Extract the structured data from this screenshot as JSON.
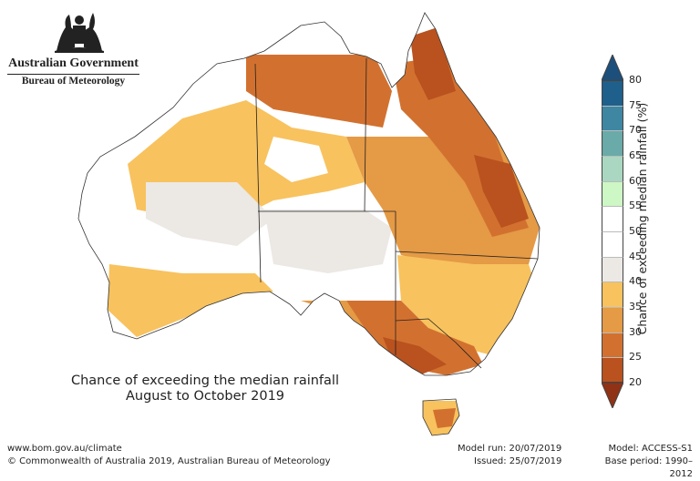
{
  "header": {
    "org_line1": "Australian Government",
    "org_line2": "Bureau of Meteorology"
  },
  "map": {
    "title_line1": "Chance of exceeding the median rainfall",
    "title_line2": "August to October 2019",
    "region": "Australia",
    "states": [
      "WA",
      "NT",
      "SA",
      "QLD",
      "NSW",
      "VIC",
      "TAS"
    ]
  },
  "legend": {
    "label": "Chance of exceeding median rainfall (%)",
    "ticks": [
      "80",
      "75",
      "70",
      "65",
      "60",
      "55",
      "50",
      "45",
      "40",
      "35",
      "30",
      "25",
      "20"
    ],
    "bands": [
      {
        "range": "75-80",
        "color": "#1f5f8b"
      },
      {
        "range": "70-75",
        "color": "#3f86a3"
      },
      {
        "range": "65-70",
        "color": "#6aaaa8"
      },
      {
        "range": "60-65",
        "color": "#a9d7c1"
      },
      {
        "range": "55-60",
        "color": "#cdf7c4"
      },
      {
        "range": "50-55",
        "color": "#ffffff"
      },
      {
        "range": "45-50",
        "color": "#ffffff"
      },
      {
        "range": "40-45",
        "color": "#ece8e4"
      },
      {
        "range": "35-40",
        "color": "#f8c25e"
      },
      {
        "range": "30-35",
        "color": "#e59a45"
      },
      {
        "range": "25-30",
        "color": "#d2712f"
      },
      {
        "range": "20-25",
        "color": "#b9521f"
      }
    ],
    "above_color": "#1c4f7b",
    "below_color": "#8f3216"
  },
  "footer": {
    "url": "www.bom.gov.au/climate",
    "copyright": "© Commonwealth of Australia 2019, Australian Bureau of Meteorology",
    "model_run": "Model run: 20/07/2019",
    "issued": "Issued: 25/07/2019",
    "model": "Model: ACCESS-S1",
    "base_period": "Base period: 1990–2012"
  }
}
